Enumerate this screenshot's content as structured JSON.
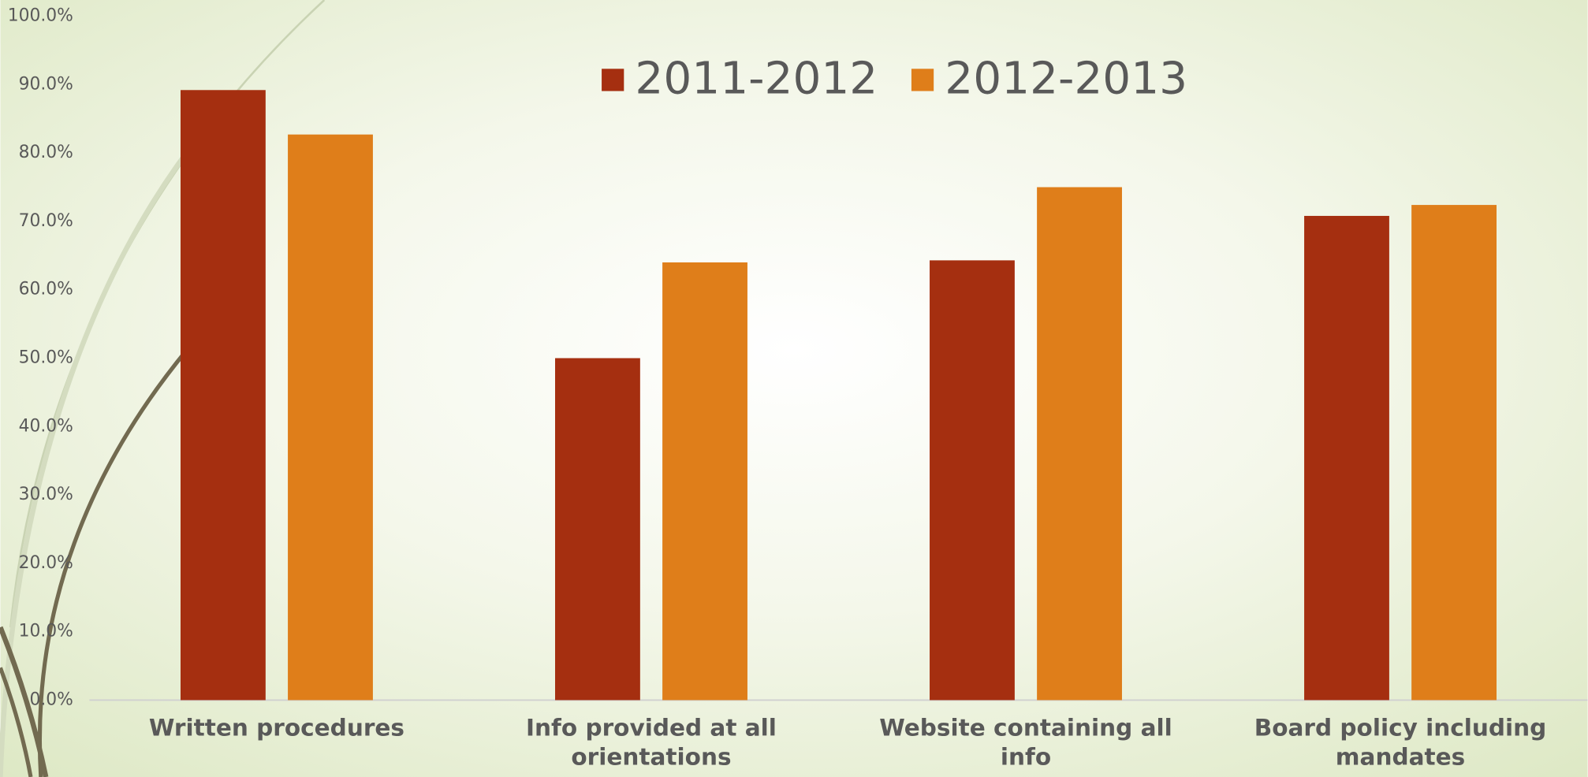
{
  "chart_data": {
    "type": "bar",
    "categories": [
      "Written procedures",
      "Info provided at all orientations",
      "Website containing all info",
      "Board policy including mandates"
    ],
    "series": [
      {
        "name": "2011-2012",
        "color": "#a52f10",
        "values": [
          89.2,
          50.0,
          64.3,
          70.8
        ]
      },
      {
        "name": "2012-2013",
        "color": "#df7e1a",
        "values": [
          82.7,
          64.0,
          75.0,
          72.4
        ]
      }
    ],
    "ylim": [
      0,
      100
    ],
    "yticks": [
      {
        "value": 0,
        "label": "0.0%"
      },
      {
        "value": 10,
        "label": "10.0%"
      },
      {
        "value": 20,
        "label": "20.0%"
      },
      {
        "value": 30,
        "label": "30.0%"
      },
      {
        "value": 40,
        "label": "40.0%"
      },
      {
        "value": 50,
        "label": "50.0%"
      },
      {
        "value": 60,
        "label": "60.0%"
      },
      {
        "value": 70,
        "label": "70.0%"
      },
      {
        "value": 80,
        "label": "80.0%"
      },
      {
        "value": 90,
        "label": "90.0%"
      },
      {
        "value": 100,
        "label": "100.0%"
      }
    ],
    "grid": false,
    "legend": "top"
  }
}
